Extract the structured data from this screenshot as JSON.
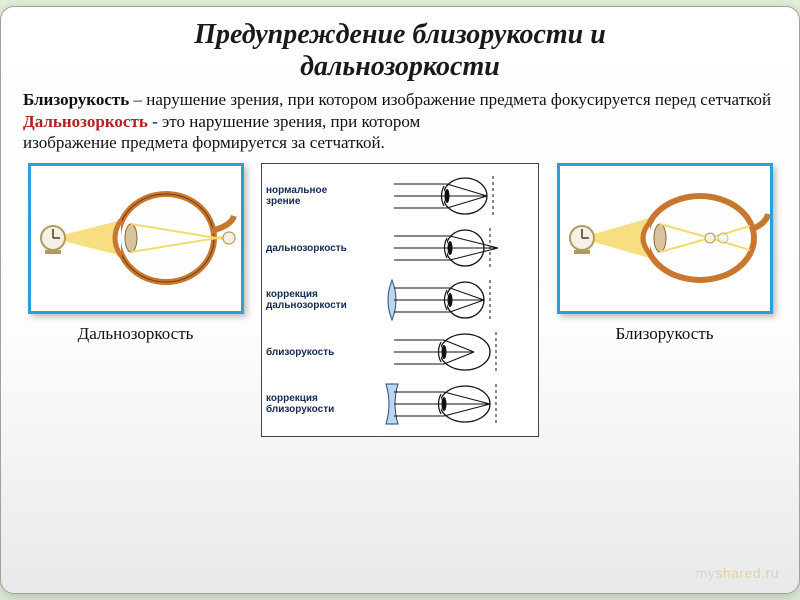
{
  "title_line1": "Предупреждение близорукости и",
  "title_line2": "дальнозоркости",
  "def1_term": "Близорукость",
  "def1_rest": " –  нарушение зрения, при котором изображение предмета фокусируется перед сетчаткой",
  "def2_term": "Дальнозоркость",
  "def2_rest": "  - это нарушение зрения, при котором",
  "def2_cont": " изображение предмета формируется за сетчаткой.",
  "left_caption": "Дальнозоркость",
  "right_caption": "Близорукость",
  "watermark_my": "my",
  "watermark_shared": "shared",
  "watermark_ru": ".ru",
  "colors": {
    "page_bg": "#e2efd9",
    "card_border": "#9aa59a",
    "frame_border": "#29a0d8",
    "eye_iris": "#c9772f",
    "eye_dark": "#6b3a12",
    "light_ray": "#f6d96b",
    "mid_label_color": "#132a57",
    "mid_line": "#111111",
    "lens_convex_fill": "#bcd6ef",
    "lens_concave_fill": "#bcd6ef",
    "retina": "#222222"
  },
  "mid_rows": [
    {
      "label": "нормальное зрение",
      "lens": "none",
      "eye": "normal"
    },
    {
      "label": "дальнозоркость",
      "lens": "none",
      "eye": "hyper"
    },
    {
      "label": "коррекция дальнозоркости",
      "lens": "convex",
      "eye": "hyper_corr"
    },
    {
      "label": "близорукость",
      "lens": "none",
      "eye": "myopia"
    },
    {
      "label": "коррекция близорукости",
      "lens": "concave",
      "eye": "myopia_corr"
    }
  ]
}
